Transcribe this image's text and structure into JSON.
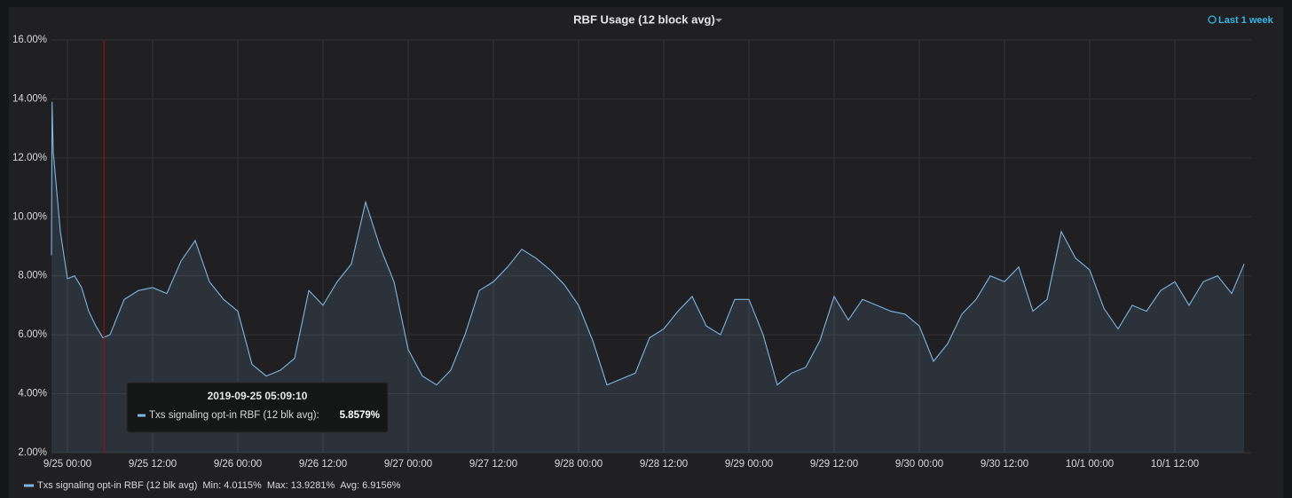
{
  "chart_data": {
    "type": "line",
    "title": "RBF Usage (12 block avg)",
    "time_range": "Last 1 week",
    "x": [
      "2019-09-24 21:45",
      "2019-09-24 21:50",
      "2019-09-24 22:00",
      "2019-09-24 23:00",
      "2019-09-25 00:00",
      "2019-09-25 01:00",
      "2019-09-25 02:00",
      "2019-09-25 03:00",
      "2019-09-25 04:00",
      "2019-09-25 05:00",
      "2019-09-25 06:00",
      "2019-09-25 07:00",
      "2019-09-25 08:00",
      "2019-09-25 10:00",
      "2019-09-25 12:00",
      "2019-09-25 14:00",
      "2019-09-25 16:00",
      "2019-09-25 18:00",
      "2019-09-25 20:00",
      "2019-09-25 22:00",
      "2019-09-26 00:00",
      "2019-09-26 02:00",
      "2019-09-26 04:00",
      "2019-09-26 06:00",
      "2019-09-26 08:00",
      "2019-09-26 10:00",
      "2019-09-26 12:00",
      "2019-09-26 14:00",
      "2019-09-26 16:00",
      "2019-09-26 18:00",
      "2019-09-26 20:00",
      "2019-09-26 22:00",
      "2019-09-27 00:00",
      "2019-09-27 02:00",
      "2019-09-27 04:00",
      "2019-09-27 06:00",
      "2019-09-27 08:00",
      "2019-09-27 10:00",
      "2019-09-27 12:00",
      "2019-09-27 14:00",
      "2019-09-27 16:00",
      "2019-09-27 18:00",
      "2019-09-27 20:00",
      "2019-09-27 22:00",
      "2019-09-28 00:00",
      "2019-09-28 02:00",
      "2019-09-28 04:00",
      "2019-09-28 06:00",
      "2019-09-28 08:00",
      "2019-09-28 10:00",
      "2019-09-28 12:00",
      "2019-09-28 14:00",
      "2019-09-28 16:00",
      "2019-09-28 18:00",
      "2019-09-28 20:00",
      "2019-09-28 22:00",
      "2019-09-29 00:00",
      "2019-09-29 02:00",
      "2019-09-29 04:00",
      "2019-09-29 06:00",
      "2019-09-29 08:00",
      "2019-09-29 10:00",
      "2019-09-29 12:00",
      "2019-09-29 14:00",
      "2019-09-29 16:00",
      "2019-09-29 18:00",
      "2019-09-29 20:00",
      "2019-09-29 22:00",
      "2019-09-30 00:00",
      "2019-09-30 02:00",
      "2019-09-30 04:00",
      "2019-09-30 06:00",
      "2019-09-30 08:00",
      "2019-09-30 10:00",
      "2019-09-30 12:00",
      "2019-09-30 14:00",
      "2019-09-30 16:00",
      "2019-09-30 18:00",
      "2019-09-30 20:00",
      "2019-09-30 22:00",
      "2019-10-01 00:00",
      "2019-10-01 02:00",
      "2019-10-01 04:00",
      "2019-10-01 06:00",
      "2019-10-01 08:00",
      "2019-10-01 10:00",
      "2019-10-01 12:00",
      "2019-10-01 14:00",
      "2019-10-01 16:00",
      "2019-10-01 18:00",
      "2019-10-01 20:00",
      "2019-10-01 21:45"
    ],
    "series": [
      {
        "name": "Txs signaling opt-in RBF (12 blk avg)",
        "color": "#7eb6e2",
        "values": [
          8.7,
          13.9,
          12.2,
          9.5,
          7.9,
          8.0,
          7.6,
          6.8,
          6.3,
          5.9,
          6.0,
          6.6,
          7.2,
          7.5,
          7.6,
          7.4,
          8.5,
          9.2,
          7.8,
          7.2,
          6.8,
          5.0,
          4.6,
          4.8,
          5.2,
          7.5,
          7.0,
          7.8,
          8.4,
          10.5,
          9.0,
          7.8,
          5.5,
          4.6,
          4.3,
          4.8,
          6.0,
          7.5,
          7.8,
          8.3,
          8.9,
          8.6,
          8.2,
          7.7,
          7.0,
          5.8,
          4.3,
          4.5,
          4.7,
          5.9,
          6.2,
          6.8,
          7.3,
          6.3,
          6.0,
          7.2,
          7.2,
          6.0,
          4.3,
          4.7,
          4.9,
          5.8,
          7.3,
          6.5,
          7.2,
          7.0,
          6.8,
          6.7,
          6.3,
          5.1,
          5.7,
          6.7,
          7.2,
          8.0,
          7.8,
          8.3,
          6.8,
          7.2,
          9.5,
          8.6,
          8.2,
          6.9,
          6.2,
          7.0,
          6.8,
          7.5,
          7.8,
          7.0,
          7.8,
          8.0,
          7.4,
          8.4
        ]
      }
    ],
    "legend_stats": [
      "Min: 4.0115%",
      "Max: 13.9281%",
      "Avg: 6.9156%"
    ],
    "tooltip": {
      "x": "2019-09-25 05:09:10",
      "label": "Txs signaling opt-in RBF (12 blk avg):",
      "value": 5.8579,
      "value_label": "5.8579%"
    },
    "xlim": [
      "2019-09-24 21:45",
      "2019-10-01 22:45"
    ],
    "xticks": [
      {
        "value": "2019-09-25 00:00",
        "label": "9/25 00:00"
      },
      {
        "value": "2019-09-25 12:00",
        "label": "9/25 12:00"
      },
      {
        "value": "2019-09-26 00:00",
        "label": "9/26 00:00"
      },
      {
        "value": "2019-09-26 12:00",
        "label": "9/26 12:00"
      },
      {
        "value": "2019-09-27 00:00",
        "label": "9/27 00:00"
      },
      {
        "value": "2019-09-27 12:00",
        "label": "9/27 12:00"
      },
      {
        "value": "2019-09-28 00:00",
        "label": "9/28 00:00"
      },
      {
        "value": "2019-09-28 12:00",
        "label": "9/28 12:00"
      },
      {
        "value": "2019-09-29 00:00",
        "label": "9/29 00:00"
      },
      {
        "value": "2019-09-29 12:00",
        "label": "9/29 12:00"
      },
      {
        "value": "2019-09-30 00:00",
        "label": "9/30 00:00"
      },
      {
        "value": "2019-09-30 12:00",
        "label": "9/30 12:00"
      },
      {
        "value": "2019-10-01 00:00",
        "label": "10/1 00:00"
      },
      {
        "value": "2019-10-01 12:00",
        "label": "10/1 12:00"
      }
    ],
    "ylim": [
      2,
      16
    ],
    "yticks": [
      {
        "value": 2,
        "label": "2.00%"
      },
      {
        "value": 4,
        "label": "4.00%"
      },
      {
        "value": 6,
        "label": "6.00%"
      },
      {
        "value": 8,
        "label": "8.00%"
      },
      {
        "value": 10,
        "label": "10.00%"
      },
      {
        "value": 12,
        "label": "12.00%"
      },
      {
        "value": 14,
        "label": "14.00%"
      },
      {
        "value": 16,
        "label": "16.00%"
      }
    ],
    "grid": true
  }
}
